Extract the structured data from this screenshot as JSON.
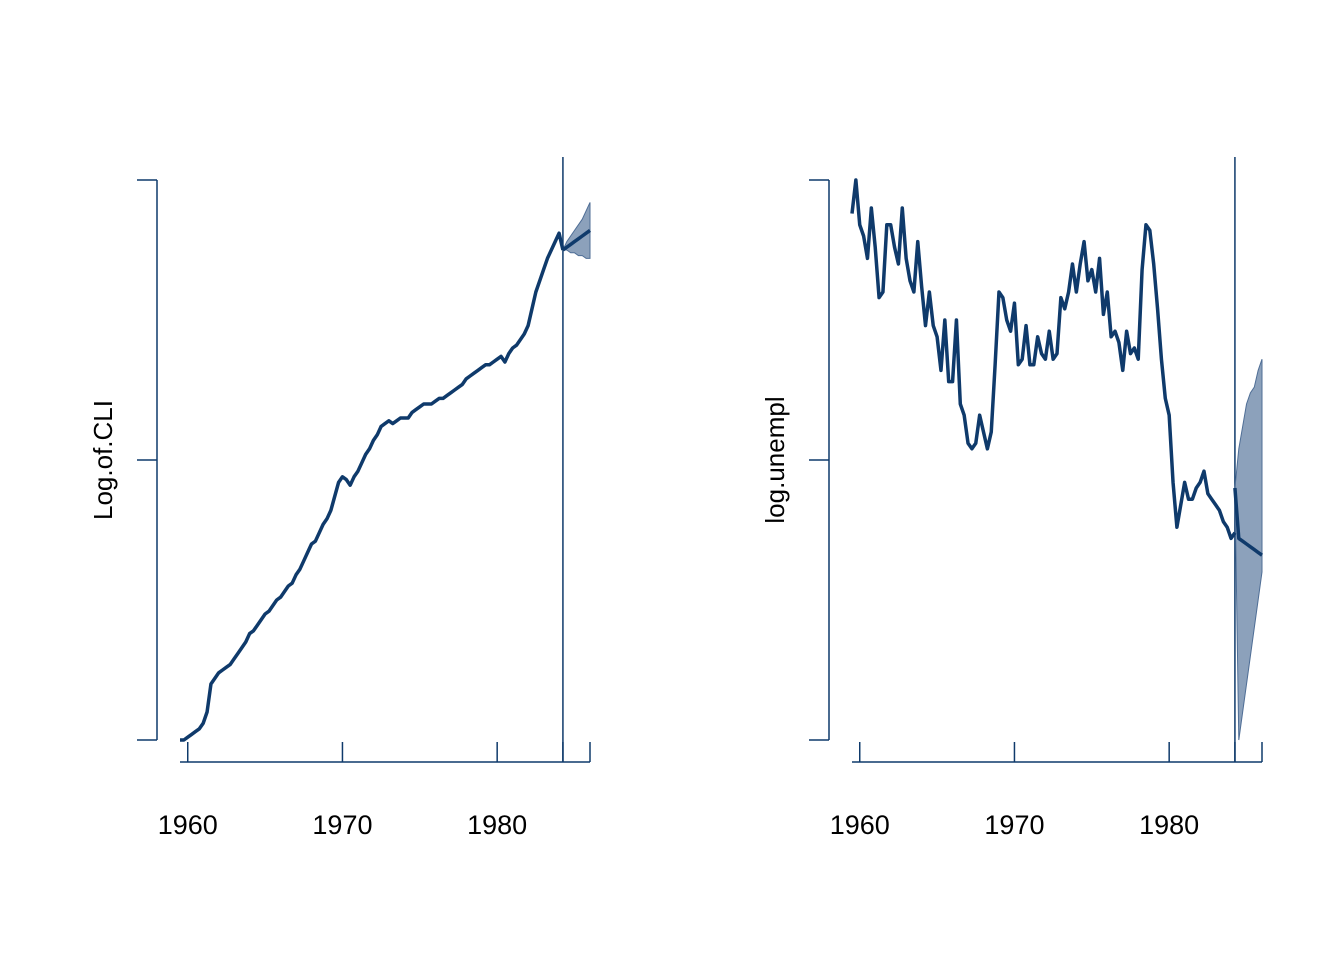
{
  "colors": {
    "line": "#0f3a6b",
    "band_fill": "#4f6e96",
    "axis": "#0f3a6b"
  },
  "chart_data": [
    {
      "type": "line",
      "ylabel": "Log.of.CLI",
      "xlabel": "",
      "xticks": [
        1960,
        1970,
        1980
      ],
      "xlim": [
        1959.5,
        1986
      ],
      "ylim": [
        0,
        1
      ],
      "forecast_origin": 1984.25,
      "x_start": 1959.5,
      "x_step": 0.25,
      "values": [
        0.0,
        0.0,
        0.005,
        0.01,
        0.015,
        0.02,
        0.03,
        0.05,
        0.1,
        0.11,
        0.12,
        0.125,
        0.13,
        0.135,
        0.145,
        0.155,
        0.165,
        0.175,
        0.19,
        0.195,
        0.205,
        0.215,
        0.225,
        0.23,
        0.24,
        0.25,
        0.255,
        0.265,
        0.275,
        0.28,
        0.295,
        0.305,
        0.32,
        0.335,
        0.35,
        0.355,
        0.37,
        0.385,
        0.395,
        0.41,
        0.435,
        0.46,
        0.47,
        0.465,
        0.455,
        0.47,
        0.48,
        0.495,
        0.51,
        0.52,
        0.535,
        0.545,
        0.56,
        0.565,
        0.57,
        0.565,
        0.57,
        0.575,
        0.575,
        0.575,
        0.585,
        0.59,
        0.595,
        0.6,
        0.6,
        0.6,
        0.605,
        0.61,
        0.61,
        0.615,
        0.62,
        0.625,
        0.63,
        0.635,
        0.645,
        0.65,
        0.655,
        0.66,
        0.665,
        0.67,
        0.67,
        0.675,
        0.68,
        0.685,
        0.675,
        0.69,
        0.7,
        0.705,
        0.715,
        0.725,
        0.74,
        0.77,
        0.8,
        0.82,
        0.84,
        0.86,
        0.875,
        0.89,
        0.905,
        0.875
      ],
      "forecast": {
        "x": [
          1984.25,
          1984.5,
          1984.75,
          1985.0,
          1985.25,
          1985.5,
          1985.75,
          1986.0
        ],
        "mean": [
          0.875,
          0.88,
          0.885,
          0.89,
          0.895,
          0.9,
          0.905,
          0.91
        ],
        "lower": [
          0.875,
          0.875,
          0.87,
          0.87,
          0.865,
          0.865,
          0.86,
          0.86
        ],
        "upper": [
          0.875,
          0.89,
          0.9,
          0.91,
          0.92,
          0.93,
          0.945,
          0.96
        ]
      }
    },
    {
      "type": "line",
      "ylabel": "log.unempl",
      "xlabel": "",
      "xticks": [
        1960,
        1970,
        1980
      ],
      "xlim": [
        1959.5,
        1986
      ],
      "ylim": [
        0,
        1
      ],
      "forecast_origin": 1984.25,
      "x_start": 1959.5,
      "x_step": 0.25,
      "values": [
        0.94,
        1.0,
        0.92,
        0.9,
        0.86,
        0.95,
        0.88,
        0.79,
        0.8,
        0.92,
        0.92,
        0.88,
        0.85,
        0.95,
        0.86,
        0.82,
        0.8,
        0.89,
        0.81,
        0.74,
        0.8,
        0.74,
        0.72,
        0.66,
        0.75,
        0.64,
        0.64,
        0.75,
        0.6,
        0.58,
        0.53,
        0.52,
        0.53,
        0.58,
        0.55,
        0.52,
        0.55,
        0.67,
        0.8,
        0.79,
        0.75,
        0.73,
        0.78,
        0.67,
        0.68,
        0.74,
        0.67,
        0.67,
        0.72,
        0.69,
        0.68,
        0.73,
        0.68,
        0.69,
        0.79,
        0.77,
        0.8,
        0.85,
        0.8,
        0.85,
        0.89,
        0.82,
        0.84,
        0.8,
        0.86,
        0.76,
        0.8,
        0.72,
        0.73,
        0.71,
        0.66,
        0.73,
        0.69,
        0.7,
        0.68,
        0.84,
        0.92,
        0.91,
        0.85,
        0.77,
        0.68,
        0.61,
        0.58,
        0.46,
        0.38,
        0.42,
        0.46,
        0.43,
        0.43,
        0.45,
        0.46,
        0.48,
        0.44,
        0.43,
        0.42,
        0.41,
        0.39,
        0.38,
        0.36,
        0.37
      ],
      "forecast": {
        "x": [
          1984.25,
          1984.5,
          1984.75,
          1985.0,
          1985.25,
          1985.5,
          1985.75,
          1986.0
        ],
        "mean": [
          0.45,
          0.36,
          0.355,
          0.35,
          0.345,
          0.34,
          0.335,
          0.33
        ],
        "lower": [
          0.45,
          0.0,
          0.05,
          0.1,
          0.15,
          0.2,
          0.25,
          0.3
        ],
        "upper": [
          0.45,
          0.52,
          0.56,
          0.6,
          0.62,
          0.63,
          0.66,
          0.68
        ]
      }
    }
  ]
}
